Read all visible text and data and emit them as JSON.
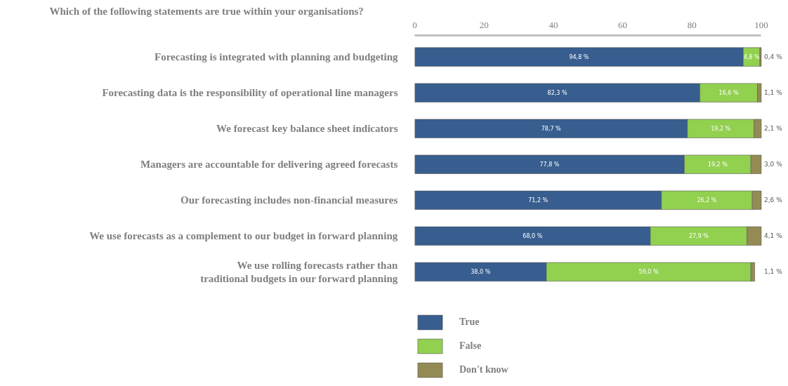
{
  "chart_data": {
    "type": "bar",
    "orientation": "horizontal",
    "stacked": true,
    "title": "Which of the following statements are true within your organisations?",
    "categories": [
      "Forecasting is integrated with planning and budgeting",
      "Forecasting data is the responsibility of operational line managers",
      "We forecast key balance sheet indicators",
      "Managers are accountable for delivering agreed forecasts",
      "Our forecasting includes non-financial measures",
      "We use forecasts as a complement to our budget in forward planning",
      "We use rolling forecasts rather than\ntraditional budgets in our forward planning"
    ],
    "series": [
      {
        "name": "True",
        "color": "#375e8f",
        "values": [
          94.8,
          82.3,
          78.7,
          77.8,
          71.2,
          68.0,
          38.0
        ],
        "value_labels": [
          "94,8 %",
          "82,3 %",
          "78,7 %",
          "77,8 %",
          "71,2 %",
          "68,0 %",
          "38,0 %"
        ]
      },
      {
        "name": "False",
        "color": "#92d050",
        "values": [
          4.8,
          16.6,
          19.2,
          19.2,
          26.2,
          27.9,
          59.0
        ],
        "value_labels": [
          "4,8 %",
          "16,6 %",
          "19,2 %",
          "19,2 %",
          "26,2 %",
          "27,9 %",
          "59,0 %"
        ]
      },
      {
        "name": "Don't know",
        "color": "#948a54",
        "values": [
          0.4,
          1.1,
          2.1,
          3.0,
          2.6,
          4.1,
          1.1
        ],
        "value_labels": [
          "0,4 %",
          "1,1 %",
          "2,1 %",
          "3,0 %",
          "2,6 %",
          "4,1 %",
          "1,1 %"
        ]
      }
    ],
    "xlim": [
      0,
      100
    ],
    "xticks": [
      0,
      20,
      40,
      60,
      80,
      100
    ],
    "grid": false,
    "legend": "bottom left"
  }
}
